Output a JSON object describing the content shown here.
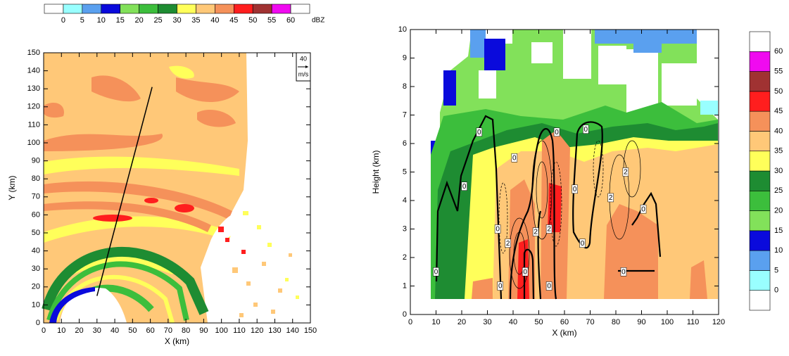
{
  "chart_data": [
    {
      "type": "contourf-map",
      "xlabel": "X (km)",
      "ylabel": "Y (km)",
      "xlim": [
        0,
        150
      ],
      "ylim": [
        0,
        150
      ],
      "xticks": [
        0,
        10,
        20,
        30,
        40,
        50,
        60,
        70,
        80,
        90,
        100,
        110,
        120,
        130,
        140,
        150
      ],
      "yticks": [
        0,
        10,
        20,
        30,
        40,
        50,
        60,
        70,
        80,
        90,
        100,
        110,
        120,
        130,
        140,
        150
      ],
      "reference_vector": {
        "value": 40,
        "unit": "m/s"
      },
      "section_line": {
        "x": [
          30,
          61
        ],
        "y": [
          15,
          131
        ]
      },
      "colorbar": {
        "orientation": "horizontal",
        "unit": "dBZ",
        "levels": [
          0,
          5,
          10,
          15,
          20,
          25,
          30,
          35,
          40,
          45,
          50,
          55,
          60
        ],
        "colors": [
          "#ffffff",
          "#99ffff",
          "#5aa0ef",
          "#0a0adc",
          "#82e15a",
          "#3cbe3c",
          "#1e8c32",
          "#ffff5a",
          "#ffc878",
          "#f5915a",
          "#ff1e1e",
          "#a03232",
          "#f00af0",
          "#ffffff"
        ]
      }
    },
    {
      "type": "cross-section",
      "xlabel": "X (km)",
      "ylabel": "Height (km)",
      "xlim": [
        0,
        120
      ],
      "ylim": [
        0,
        10
      ],
      "xticks": [
        0,
        10,
        20,
        30,
        40,
        50,
        60,
        70,
        80,
        90,
        100,
        110,
        120
      ],
      "yticks": [
        0,
        1,
        2,
        3,
        4,
        5,
        6,
        7,
        8,
        9,
        10
      ],
      "contour_labels": {
        "x": [
          26.8,
          21,
          40.5,
          34,
          38,
          44.7,
          35,
          48.8,
          54,
          57,
          54,
          64,
          67,
          68.3,
          83.8,
          78,
          90.7,
          83,
          10
        ],
        "y": [
          6.4,
          4.5,
          5.5,
          3.0,
          2.5,
          1.5,
          1.0,
          2.9,
          3.0,
          6.4,
          1.0,
          4.4,
          2.5,
          6.5,
          5.0,
          4.1,
          3.7,
          1.5,
          1.5
        ],
        "values": [
          0,
          0,
          0,
          0,
          2,
          0,
          0,
          2,
          2,
          0,
          0,
          0,
          0,
          0,
          2,
          2,
          0,
          0,
          0
        ]
      },
      "colorbar": {
        "orientation": "vertical",
        "levels": [
          0,
          5,
          10,
          15,
          20,
          25,
          30,
          35,
          40,
          45,
          50,
          55,
          60
        ],
        "colors": [
          "#ffffff",
          "#99ffff",
          "#5aa0ef",
          "#0a0adc",
          "#82e15a",
          "#3cbe3c",
          "#1e8c32",
          "#ffff5a",
          "#ffc878",
          "#f5915a",
          "#ff1e1e",
          "#a03232",
          "#f00af0",
          "#ffffff"
        ]
      }
    }
  ]
}
